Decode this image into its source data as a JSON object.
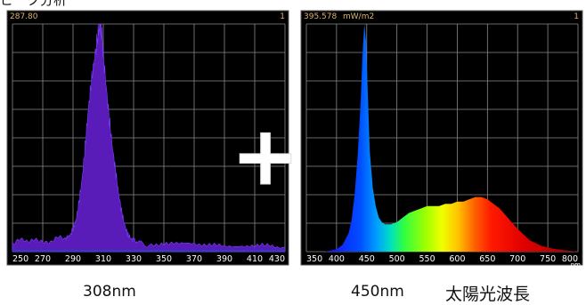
{
  "heading": "ピーク分析",
  "plus_symbol": "+",
  "colors": {
    "panel_bg": "#000000",
    "grid": "#8a8a8a",
    "frame": "#5a5a5a",
    "readout": "#d8b56a",
    "tick": "#ffffff",
    "uv_fill": "#5a1cb8",
    "baseline": "#2a3fd0"
  },
  "chart_data": [
    {
      "type": "area",
      "readout_max": "287.80",
      "corner_label": "1",
      "xlim": [
        250,
        430
      ],
      "ylim": [
        0,
        1
      ],
      "xticks": [
        250,
        270,
        290,
        310,
        330,
        350,
        370,
        390,
        410,
        430
      ],
      "x": [
        250,
        255,
        260,
        265,
        270,
        275,
        280,
        285,
        288,
        290,
        292,
        294,
        296,
        298,
        300,
        302,
        304,
        306,
        307,
        308,
        309,
        310,
        312,
        314,
        316,
        318,
        320,
        322,
        324,
        326,
        328,
        330,
        334,
        340,
        350,
        360,
        370,
        380,
        390,
        400,
        410,
        420,
        430
      ],
      "y": [
        0.03,
        0.05,
        0.04,
        0.06,
        0.05,
        0.04,
        0.06,
        0.05,
        0.07,
        0.1,
        0.14,
        0.22,
        0.32,
        0.46,
        0.62,
        0.74,
        0.84,
        0.93,
        0.98,
        1.0,
        0.96,
        0.86,
        0.72,
        0.58,
        0.46,
        0.36,
        0.26,
        0.18,
        0.12,
        0.08,
        0.06,
        0.05,
        0.04,
        0.03,
        0.04,
        0.03,
        0.04,
        0.03,
        0.02,
        0.03,
        0.02,
        0.03,
        0.02
      ],
      "caption": "308nm"
    },
    {
      "type": "area",
      "readout_max": "395.578",
      "readout_unit": "mW/m2",
      "corner_label": "1",
      "xlim": [
        350,
        800
      ],
      "ylim": [
        0,
        1
      ],
      "xticks": [
        350,
        400,
        450,
        500,
        550,
        600,
        650,
        700,
        750,
        800
      ],
      "x_unit": "nm",
      "x": [
        350,
        380,
        400,
        410,
        420,
        425,
        430,
        435,
        440,
        443,
        446,
        449,
        452,
        455,
        460,
        465,
        470,
        475,
        480,
        490,
        500,
        510,
        520,
        530,
        540,
        550,
        560,
        570,
        580,
        590,
        600,
        610,
        620,
        630,
        640,
        650,
        660,
        670,
        680,
        690,
        700,
        720,
        740,
        760,
        780,
        800
      ],
      "y": [
        0.0,
        0.0,
        0.01,
        0.03,
        0.08,
        0.14,
        0.25,
        0.42,
        0.66,
        0.86,
        1.0,
        0.92,
        0.68,
        0.44,
        0.28,
        0.2,
        0.15,
        0.13,
        0.12,
        0.12,
        0.13,
        0.15,
        0.17,
        0.18,
        0.19,
        0.2,
        0.2,
        0.2,
        0.21,
        0.21,
        0.22,
        0.22,
        0.23,
        0.24,
        0.24,
        0.23,
        0.21,
        0.19,
        0.16,
        0.13,
        0.1,
        0.05,
        0.025,
        0.012,
        0.006,
        0.0
      ],
      "caption_a": "450nm",
      "caption_b": "太陽光波長"
    }
  ]
}
